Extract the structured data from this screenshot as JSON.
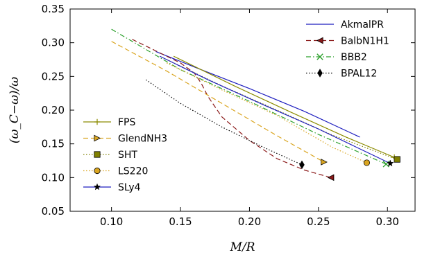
{
  "chart_data": {
    "type": "line",
    "xlabel": "M/R",
    "ylabel": "(ω_C−ω)/ω",
    "xlim": [
      0.07,
      0.32
    ],
    "ylim": [
      0.05,
      0.35
    ],
    "xticks": [
      0.1,
      0.15,
      0.2,
      0.25,
      0.3
    ],
    "xtick_labels": [
      "0.10",
      "0.15",
      "0.20",
      "0.25",
      "0.30"
    ],
    "yticks": [
      0.05,
      0.1,
      0.15,
      0.2,
      0.25,
      0.3,
      0.35
    ],
    "ytick_labels": [
      "0.05",
      "0.10",
      "0.15",
      "0.20",
      "0.25",
      "0.30",
      "0.35"
    ],
    "grid": false,
    "legends": [
      {
        "placement": "top-right",
        "entries": [
          "AkmalPR",
          "BalbN1H1",
          "BBB2",
          "BPAL12"
        ]
      },
      {
        "placement": "bottom-left",
        "entries": [
          "FPS",
          "GlendNH3",
          "SHT",
          "LS220",
          "SLy4"
        ]
      }
    ],
    "series": [
      {
        "name": "AkmalPR",
        "color": "#1f1fbf",
        "dash": "solid",
        "marker": "none",
        "x": [
          0.132,
          0.16,
          0.2,
          0.24,
          0.28
        ],
        "y": [
          0.287,
          0.264,
          0.232,
          0.198,
          0.16
        ]
      },
      {
        "name": "BalbN1H1",
        "color": "#8b1a1a",
        "dash": "dashed",
        "marker": "triangle-left",
        "x": [
          0.115,
          0.135,
          0.15,
          0.16,
          0.165,
          0.17,
          0.18,
          0.2,
          0.22,
          0.24,
          0.259
        ],
        "y": [
          0.305,
          0.285,
          0.27,
          0.255,
          0.24,
          0.22,
          0.19,
          0.155,
          0.128,
          0.111,
          0.1
        ]
      },
      {
        "name": "BBB2",
        "color": "#2ca02c",
        "dash": "dashdot",
        "marker": "x",
        "x": [
          0.1,
          0.15,
          0.2,
          0.25,
          0.299
        ],
        "y": [
          0.32,
          0.26,
          0.213,
          0.164,
          0.12
        ]
      },
      {
        "name": "BPAL12",
        "color": "#000000",
        "dash": "dotted",
        "marker": "diamond",
        "x": [
          0.125,
          0.15,
          0.18,
          0.21,
          0.238
        ],
        "y": [
          0.245,
          0.21,
          0.175,
          0.145,
          0.119
        ]
      },
      {
        "name": "FPS",
        "color": "#8b8b00",
        "dash": "solid",
        "marker": "plus",
        "x": [
          0.145,
          0.19,
          0.23,
          0.27,
          0.305
        ],
        "y": [
          0.28,
          0.235,
          0.197,
          0.16,
          0.13
        ]
      },
      {
        "name": "GlendNH3",
        "color": "#daa520",
        "dash": "dashed",
        "marker": "triangle-right",
        "x": [
          0.1,
          0.14,
          0.18,
          0.22,
          0.254
        ],
        "y": [
          0.302,
          0.258,
          0.21,
          0.162,
          0.123
        ]
      },
      {
        "name": "SHT",
        "color": "#808000",
        "dash": "dotted",
        "marker": "square",
        "x": [
          0.14,
          0.18,
          0.22,
          0.26,
          0.307
        ],
        "y": [
          0.275,
          0.236,
          0.2,
          0.163,
          0.127
        ]
      },
      {
        "name": "LS220",
        "color": "#daa520",
        "dash": "dotted",
        "marker": "circle",
        "x": [
          0.14,
          0.18,
          0.22,
          0.26,
          0.285
        ],
        "y": [
          0.27,
          0.23,
          0.192,
          0.145,
          0.122
        ]
      },
      {
        "name": "SLy4",
        "color": "#1f1fbf",
        "dash": "solid",
        "marker": "star",
        "x": [
          0.135,
          0.17,
          0.21,
          0.25,
          0.302
        ],
        "y": [
          0.28,
          0.245,
          0.208,
          0.172,
          0.121
        ]
      }
    ]
  }
}
